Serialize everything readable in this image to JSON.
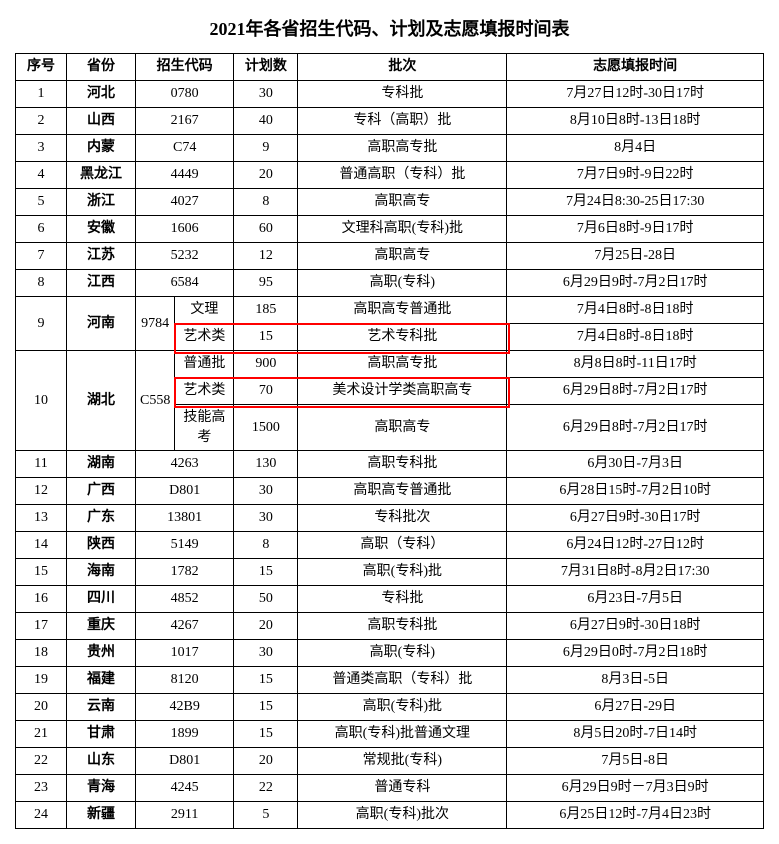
{
  "title": "2021年各省招生代码、计划及志愿填报时间表",
  "headers": {
    "seq": "序号",
    "prov": "省份",
    "code": "招生代码",
    "plan": "计划数",
    "batch": "批次",
    "time": "志愿填报时间"
  },
  "rows": [
    {
      "seq": "1",
      "prov": "河北",
      "code": "0780",
      "plan": "30",
      "batch": "专科批",
      "time": "7月27日12时-30日17时"
    },
    {
      "seq": "2",
      "prov": "山西",
      "code": "2167",
      "plan": "40",
      "batch": "专科（高职）批",
      "time": "8月10日8时-13日18时"
    },
    {
      "seq": "3",
      "prov": "内蒙",
      "code": "C74",
      "plan": "9",
      "batch": "高职高专批",
      "time": "8月4日"
    },
    {
      "seq": "4",
      "prov": "黑龙江",
      "code": "4449",
      "plan": "20",
      "batch": "普通高职（专科）批",
      "time": "7月7日9时-9日22时"
    },
    {
      "seq": "5",
      "prov": "浙江",
      "code": "4027",
      "plan": "8",
      "batch": "高职高专",
      "time": "7月24日8:30-25日17:30"
    },
    {
      "seq": "6",
      "prov": "安徽",
      "code": "1606",
      "plan": "60",
      "batch": "文理科高职(专科)批",
      "time": "7月6日8时-9日17时"
    },
    {
      "seq": "7",
      "prov": "江苏",
      "code": "5232",
      "plan": "12",
      "batch": "高职高专",
      "time": "7月25日-28日"
    },
    {
      "seq": "8",
      "prov": "江西",
      "code": "6584",
      "plan": "95",
      "batch": "高职(专科)",
      "time": "6月29日9时-7月2日17时"
    }
  ],
  "henan": {
    "seq": "9",
    "prov": "河南",
    "code": "9784",
    "sub": [
      {
        "type": "文理",
        "plan": "185",
        "batch": "高职高专普通批",
        "time": "7月4日8时-8日18时"
      },
      {
        "type": "艺术类",
        "plan": "15",
        "batch": "艺术专科批",
        "time": "7月4日8时-8日18时"
      }
    ]
  },
  "hubei": {
    "seq": "10",
    "prov": "湖北",
    "code": "C558",
    "sub": [
      {
        "type": "普通批",
        "plan": "900",
        "batch": "高职高专批",
        "time": "8月8日8时-11日17时"
      },
      {
        "type": "艺术类",
        "plan": "70",
        "batch": "美术设计学类高职高专",
        "time": "6月29日8时-7月2日17时"
      },
      {
        "type": "技能高考",
        "plan": "1500",
        "batch": "高职高专",
        "time": "6月29日8时-7月2日17时"
      }
    ]
  },
  "rows2": [
    {
      "seq": "11",
      "prov": "湖南",
      "code": "4263",
      "plan": "130",
      "batch": "高职专科批",
      "time": "6月30日-7月3日"
    },
    {
      "seq": "12",
      "prov": "广西",
      "code": "D801",
      "plan": "30",
      "batch": "高职高专普通批",
      "time": "6月28日15时-7月2日10时"
    },
    {
      "seq": "13",
      "prov": "广东",
      "code": "13801",
      "plan": "30",
      "batch": "专科批次",
      "time": "6月27日9时-30日17时"
    },
    {
      "seq": "14",
      "prov": "陕西",
      "code": "5149",
      "plan": "8",
      "batch": "高职（专科）",
      "time": "6月24日12时-27日12时"
    },
    {
      "seq": "15",
      "prov": "海南",
      "code": "1782",
      "plan": "15",
      "batch": "高职(专科)批",
      "time": "7月31日8时-8月2日17:30"
    },
    {
      "seq": "16",
      "prov": "四川",
      "code": "4852",
      "plan": "50",
      "batch": "专科批",
      "time": "6月23日-7月5日"
    },
    {
      "seq": "17",
      "prov": "重庆",
      "code": "4267",
      "plan": "20",
      "batch": "高职专科批",
      "time": "6月27日9时-30日18时"
    },
    {
      "seq": "18",
      "prov": "贵州",
      "code": "1017",
      "plan": "30",
      "batch": "高职(专科)",
      "time": "6月29日0时-7月2日18时"
    },
    {
      "seq": "19",
      "prov": "福建",
      "code": "8120",
      "plan": "15",
      "batch": "普通类高职（专科）批",
      "time": "8月3日-5日"
    },
    {
      "seq": "20",
      "prov": "云南",
      "code": "42B9",
      "plan": "15",
      "batch": "高职(专科)批",
      "time": "6月27日-29日"
    },
    {
      "seq": "21",
      "prov": "甘肃",
      "code": "1899",
      "plan": "15",
      "batch": "高职(专科)批普通文理",
      "time": "8月5日20时-7日14时"
    },
    {
      "seq": "22",
      "prov": "山东",
      "code": "D801",
      "plan": "20",
      "batch": "常规批(专科)",
      "time": "7月5日-8日"
    },
    {
      "seq": "23",
      "prov": "青海",
      "code": "4245",
      "plan": "22",
      "batch": "普通专科",
      "time": "6月29日9时－7月3日9时"
    },
    {
      "seq": "24",
      "prov": "新疆",
      "code": "2911",
      "plan": "5",
      "batch": "高职(专科)批次",
      "time": "6月25日12时-7月4日23时"
    }
  ],
  "highlight_colors": {
    "border": "#ff0000"
  }
}
